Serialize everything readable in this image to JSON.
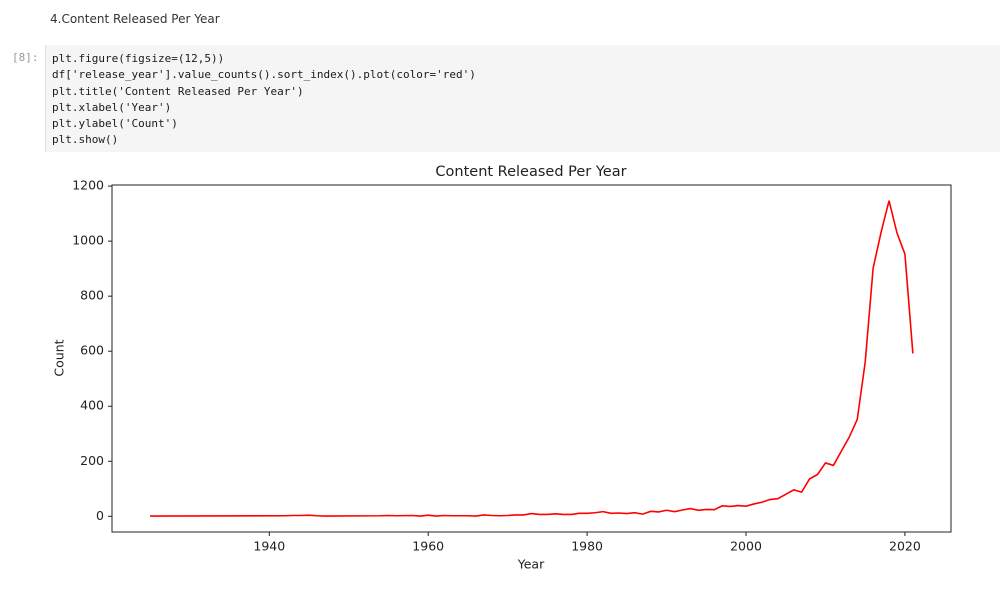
{
  "markdown": {
    "text": "4.Content Released Per Year"
  },
  "code": {
    "prompt": "[8]:",
    "lines": [
      "plt.figure(figsize=(12,5))",
      "df['release_year'].value_counts().sort_index().plot(color='red')",
      "plt.title('Content Released Per Year')",
      "plt.xlabel('Year')",
      "plt.ylabel('Count')",
      "plt.show()"
    ]
  },
  "chart_data": {
    "type": "line",
    "title": "Content Released Per Year",
    "xlabel": "Year",
    "ylabel": "Count",
    "color": "red",
    "x": [
      1925,
      1942,
      1943,
      1944,
      1945,
      1946,
      1947,
      1954,
      1955,
      1956,
      1958,
      1959,
      1960,
      1961,
      1962,
      1963,
      1964,
      1965,
      1966,
      1967,
      1968,
      1969,
      1970,
      1971,
      1972,
      1973,
      1974,
      1975,
      1976,
      1977,
      1978,
      1979,
      1980,
      1981,
      1982,
      1983,
      1984,
      1985,
      1986,
      1987,
      1988,
      1989,
      1990,
      1991,
      1992,
      1993,
      1994,
      1995,
      1996,
      1997,
      1998,
      1999,
      2000,
      2001,
      2002,
      2003,
      2004,
      2005,
      2006,
      2007,
      2008,
      2009,
      2010,
      2011,
      2012,
      2013,
      2014,
      2015,
      2016,
      2017,
      2018,
      2019,
      2020,
      2021
    ],
    "values": [
      1,
      2,
      3,
      3,
      4,
      2,
      1,
      2,
      3,
      2,
      3,
      1,
      4,
      1,
      3,
      2,
      2,
      2,
      1,
      5,
      3,
      2,
      3,
      5,
      5,
      10,
      7,
      7,
      9,
      7,
      7,
      11,
      11,
      13,
      17,
      11,
      12,
      10,
      13,
      8,
      18,
      16,
      22,
      17,
      23,
      28,
      22,
      25,
      24,
      38,
      36,
      39,
      37,
      45,
      51,
      61,
      64,
      80,
      96,
      88,
      136,
      152,
      194,
      185,
      237,
      288,
      352,
      560,
      902,
      1032,
      1147,
      1030,
      953,
      592
    ],
    "xlim": [
      1920.2,
      2025.8
    ],
    "ylim": [
      -57,
      1204
    ],
    "xticks": [
      1940,
      1960,
      1980,
      2000,
      2020
    ],
    "yticks": [
      0,
      200,
      400,
      600,
      800,
      1000,
      1200
    ]
  }
}
